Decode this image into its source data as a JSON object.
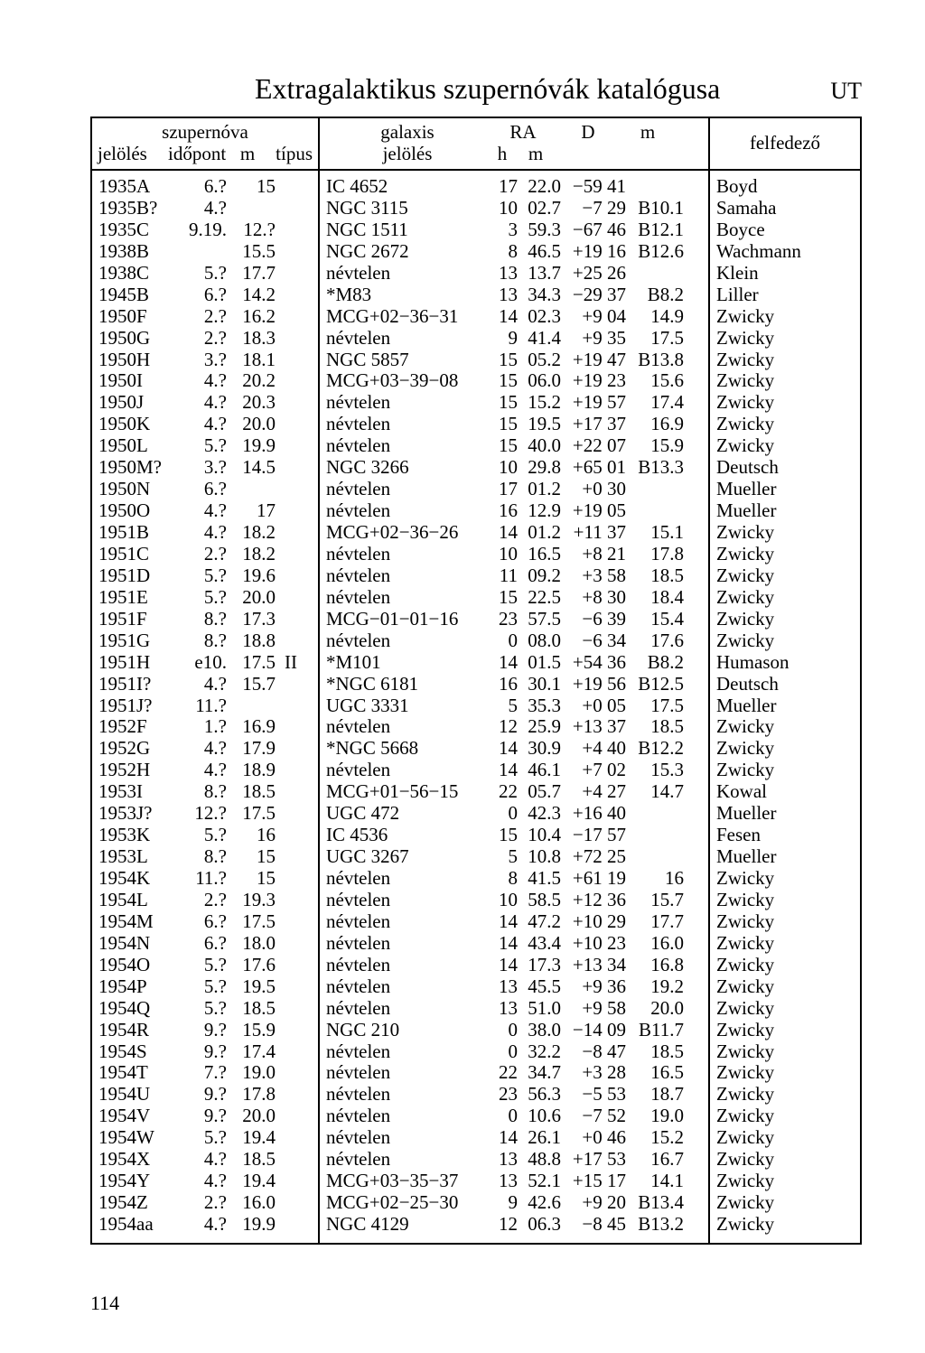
{
  "title": "Extragalaktikus szupernóvák katalógusa",
  "ut_label": "UT",
  "page_number": "114",
  "headers": {
    "sn_super": "szupernóva",
    "sn_jeloles": "jelölés",
    "sn_idopont": "időpont",
    "sn_m": "m",
    "sn_tipus": "típus",
    "gal_galaxis": "galaxis",
    "gal_jeloles": "jelölés",
    "gal_RA": "RA",
    "gal_h": "h",
    "gal_m_ra": "m",
    "gal_D": "D",
    "gal_m": "m",
    "felfedezo": "felfedező"
  },
  "rows": [
    {
      "jel": "1935A",
      "ido": "6.?",
      "m": "15",
      "tip": "",
      "gal": "IC 4652",
      "rah": "17",
      "ram": "22.0",
      "d": "−59 41",
      "gm": "",
      "disc": "Boyd"
    },
    {
      "jel": "1935B?",
      "ido": "4.?",
      "m": "",
      "tip": "",
      "gal": "NGC 3115",
      "rah": "10",
      "ram": "02.7",
      "d": "−7 29",
      "gm": "B10.1",
      "disc": "Samaha"
    },
    {
      "jel": "1935C",
      "ido": "9.19.",
      "m": "12.?",
      "tip": "",
      "gal": "NGC 1511",
      "rah": "3",
      "ram": "59.3",
      "d": "−67 46",
      "gm": "B12.1",
      "disc": "Boyce"
    },
    {
      "jel": "1938B",
      "ido": "",
      "m": "15.5",
      "tip": "",
      "gal": "NGC 2672",
      "rah": "8",
      "ram": "46.5",
      "d": "+19 16",
      "gm": "B12.6",
      "disc": "Wachmann"
    },
    {
      "jel": "1938C",
      "ido": "5.?",
      "m": "17.7",
      "tip": "",
      "gal": "névtelen",
      "rah": "13",
      "ram": "13.7",
      "d": "+25 26",
      "gm": "",
      "disc": "Klein"
    },
    {
      "jel": "1945B",
      "ido": "6.?",
      "m": "14.2",
      "tip": "",
      "gal": "*M83",
      "rah": "13",
      "ram": "34.3",
      "d": "−29 37",
      "gm": "B8.2",
      "disc": "Liller"
    },
    {
      "jel": "1950F",
      "ido": "2.?",
      "m": "16.2",
      "tip": "",
      "gal": "MCG+02−36−31",
      "rah": "14",
      "ram": "02.3",
      "d": "+9 04",
      "gm": "14.9",
      "disc": "Zwicky"
    },
    {
      "jel": "1950G",
      "ido": "2.?",
      "m": "18.3",
      "tip": "",
      "gal": "névtelen",
      "rah": "9",
      "ram": "41.4",
      "d": "+9 35",
      "gm": "17.5",
      "disc": "Zwicky"
    },
    {
      "jel": "1950H",
      "ido": "3.?",
      "m": "18.1",
      "tip": "",
      "gal": "NGC 5857",
      "rah": "15",
      "ram": "05.2",
      "d": "+19 47",
      "gm": "B13.8",
      "disc": "Zwicky"
    },
    {
      "jel": "1950I",
      "ido": "4.?",
      "m": "20.2",
      "tip": "",
      "gal": "MCG+03−39−08",
      "rah": "15",
      "ram": "06.0",
      "d": "+19 23",
      "gm": "15.6",
      "disc": "Zwicky"
    },
    {
      "jel": "1950J",
      "ido": "4.?",
      "m": "20.3",
      "tip": "",
      "gal": "névtelen",
      "rah": "15",
      "ram": "15.2",
      "d": "+19 57",
      "gm": "17.4",
      "disc": "Zwicky"
    },
    {
      "jel": "1950K",
      "ido": "4.?",
      "m": "20.0",
      "tip": "",
      "gal": "névtelen",
      "rah": "15",
      "ram": "19.5",
      "d": "+17 37",
      "gm": "16.9",
      "disc": "Zwicky"
    },
    {
      "jel": "1950L",
      "ido": "5.?",
      "m": "19.9",
      "tip": "",
      "gal": "névtelen",
      "rah": "15",
      "ram": "40.0",
      "d": "+22 07",
      "gm": "15.9",
      "disc": "Zwicky"
    },
    {
      "jel": "1950M?",
      "ido": "3.?",
      "m": "14.5",
      "tip": "",
      "gal": "NGC 3266",
      "rah": "10",
      "ram": "29.8",
      "d": "+65 01",
      "gm": "B13.3",
      "disc": "Deutsch"
    },
    {
      "jel": "1950N",
      "ido": "6.?",
      "m": "",
      "tip": "",
      "gal": "névtelen",
      "rah": "17",
      "ram": "01.2",
      "d": "+0 30",
      "gm": "",
      "disc": "Mueller"
    },
    {
      "jel": "1950O",
      "ido": "4.?",
      "m": "17",
      "tip": "",
      "gal": "névtelen",
      "rah": "16",
      "ram": "12.9",
      "d": "+19 05",
      "gm": "",
      "disc": "Mueller"
    },
    {
      "jel": "1951B",
      "ido": "4.?",
      "m": "18.2",
      "tip": "",
      "gal": "MCG+02−36−26",
      "rah": "14",
      "ram": "01.2",
      "d": "+11 37",
      "gm": "15.1",
      "disc": "Zwicky"
    },
    {
      "jel": "1951C",
      "ido": "2.?",
      "m": "18.2",
      "tip": "",
      "gal": "névtelen",
      "rah": "10",
      "ram": "16.5",
      "d": "+8 21",
      "gm": "17.8",
      "disc": "Zwicky"
    },
    {
      "jel": "1951D",
      "ido": "5.?",
      "m": "19.6",
      "tip": "",
      "gal": "névtelen",
      "rah": "11",
      "ram": "09.2",
      "d": "+3 58",
      "gm": "18.5",
      "disc": "Zwicky"
    },
    {
      "jel": "1951E",
      "ido": "5.?",
      "m": "20.0",
      "tip": "",
      "gal": "névtelen",
      "rah": "15",
      "ram": "22.5",
      "d": "+8 30",
      "gm": "18.4",
      "disc": "Zwicky"
    },
    {
      "jel": "1951F",
      "ido": "8.?",
      "m": "17.3",
      "tip": "",
      "gal": "MCG−01−01−16",
      "rah": "23",
      "ram": "57.5",
      "d": "−6 39",
      "gm": "15.4",
      "disc": "Zwicky"
    },
    {
      "jel": "1951G",
      "ido": "8.?",
      "m": "18.8",
      "tip": "",
      "gal": "névtelen",
      "rah": "0",
      "ram": "08.0",
      "d": "−6 34",
      "gm": "17.6",
      "disc": "Zwicky"
    },
    {
      "jel": "1951H",
      "ido": "e10.",
      "m": "17.5",
      "tip": "II",
      "gal": "*M101",
      "rah": "14",
      "ram": "01.5",
      "d": "+54 36",
      "gm": "B8.2",
      "disc": "Humason"
    },
    {
      "jel": "1951I?",
      "ido": "4.?",
      "m": "15.7",
      "tip": "",
      "gal": "*NGC 6181",
      "rah": "16",
      "ram": "30.1",
      "d": "+19 56",
      "gm": "B12.5",
      "disc": "Deutsch"
    },
    {
      "jel": "1951J?",
      "ido": "11.?",
      "m": "",
      "tip": "",
      "gal": "UGC 3331",
      "rah": "5",
      "ram": "35.3",
      "d": "+0 05",
      "gm": "17.5",
      "disc": "Mueller"
    },
    {
      "jel": "1952F",
      "ido": "1.?",
      "m": "16.9",
      "tip": "",
      "gal": "névtelen",
      "rah": "12",
      "ram": "25.9",
      "d": "+13 37",
      "gm": "18.5",
      "disc": "Zwicky"
    },
    {
      "jel": "1952G",
      "ido": "4.?",
      "m": "17.9",
      "tip": "",
      "gal": "*NGC 5668",
      "rah": "14",
      "ram": "30.9",
      "d": "+4 40",
      "gm": "B12.2",
      "disc": "Zwicky"
    },
    {
      "jel": "1952H",
      "ido": "4.?",
      "m": "18.9",
      "tip": "",
      "gal": "névtelen",
      "rah": "14",
      "ram": "46.1",
      "d": "+7 02",
      "gm": "15.3",
      "disc": "Zwicky"
    },
    {
      "jel": "1953I",
      "ido": "8.?",
      "m": "18.5",
      "tip": "",
      "gal": "MCG+01−56−15",
      "rah": "22",
      "ram": "05.7",
      "d": "+4 27",
      "gm": "14.7",
      "disc": "Kowal"
    },
    {
      "jel": "1953J?",
      "ido": "12.?",
      "m": "17.5",
      "tip": "",
      "gal": "UGC 472",
      "rah": "0",
      "ram": "42.3",
      "d": "+16 40",
      "gm": "",
      "disc": "Mueller"
    },
    {
      "jel": "1953K",
      "ido": "5.?",
      "m": "16",
      "tip": "",
      "gal": "IC 4536",
      "rah": "15",
      "ram": "10.4",
      "d": "−17 57",
      "gm": "",
      "disc": "Fesen"
    },
    {
      "jel": "1953L",
      "ido": "8.?",
      "m": "15",
      "tip": "",
      "gal": "UGC 3267",
      "rah": "5",
      "ram": "10.8",
      "d": "+72 25",
      "gm": "",
      "disc": "Mueller"
    },
    {
      "jel": "1954K",
      "ido": "11.?",
      "m": "15",
      "tip": "",
      "gal": "névtelen",
      "rah": "8",
      "ram": "41.5",
      "d": "+61 19",
      "gm": "16",
      "disc": "Zwicky"
    },
    {
      "jel": "1954L",
      "ido": "2.?",
      "m": "19.3",
      "tip": "",
      "gal": "névtelen",
      "rah": "10",
      "ram": "58.5",
      "d": "+12 36",
      "gm": "15.7",
      "disc": "Zwicky"
    },
    {
      "jel": "1954M",
      "ido": "6.?",
      "m": "17.5",
      "tip": "",
      "gal": "névtelen",
      "rah": "14",
      "ram": "47.2",
      "d": "+10 29",
      "gm": "17.7",
      "disc": "Zwicky"
    },
    {
      "jel": "1954N",
      "ido": "6.?",
      "m": "18.0",
      "tip": "",
      "gal": "névtelen",
      "rah": "14",
      "ram": "43.4",
      "d": "+10 23",
      "gm": "16.0",
      "disc": "Zwicky"
    },
    {
      "jel": "1954O",
      "ido": "5.?",
      "m": "17.6",
      "tip": "",
      "gal": "névtelen",
      "rah": "14",
      "ram": "17.3",
      "d": "+13 34",
      "gm": "16.8",
      "disc": "Zwicky"
    },
    {
      "jel": "1954P",
      "ido": "5.?",
      "m": "19.5",
      "tip": "",
      "gal": "névtelen",
      "rah": "13",
      "ram": "45.5",
      "d": "+9 36",
      "gm": "19.2",
      "disc": "Zwicky"
    },
    {
      "jel": "1954Q",
      "ido": "5.?",
      "m": "18.5",
      "tip": "",
      "gal": "névtelen",
      "rah": "13",
      "ram": "51.0",
      "d": "+9 58",
      "gm": "20.0",
      "disc": "Zwicky"
    },
    {
      "jel": "1954R",
      "ido": "9.?",
      "m": "15.9",
      "tip": "",
      "gal": "NGC 210",
      "rah": "0",
      "ram": "38.0",
      "d": "−14 09",
      "gm": "B11.7",
      "disc": "Zwicky"
    },
    {
      "jel": "1954S",
      "ido": "9.?",
      "m": "17.4",
      "tip": "",
      "gal": "névtelen",
      "rah": "0",
      "ram": "32.2",
      "d": "−8 47",
      "gm": "18.5",
      "disc": "Zwicky"
    },
    {
      "jel": "1954T",
      "ido": "7.?",
      "m": "19.0",
      "tip": "",
      "gal": "névtelen",
      "rah": "22",
      "ram": "34.7",
      "d": "+3 28",
      "gm": "16.5",
      "disc": "Zwicky"
    },
    {
      "jel": "1954U",
      "ido": "9.?",
      "m": "17.8",
      "tip": "",
      "gal": "névtelen",
      "rah": "23",
      "ram": "56.3",
      "d": "−5 53",
      "gm": "18.7",
      "disc": "Zwicky"
    },
    {
      "jel": "1954V",
      "ido": "9.?",
      "m": "20.0",
      "tip": "",
      "gal": "névtelen",
      "rah": "0",
      "ram": "10.6",
      "d": "−7 52",
      "gm": "19.0",
      "disc": "Zwicky"
    },
    {
      "jel": "1954W",
      "ido": "5.?",
      "m": "19.4",
      "tip": "",
      "gal": "névtelen",
      "rah": "14",
      "ram": "26.1",
      "d": "+0 46",
      "gm": "15.2",
      "disc": "Zwicky"
    },
    {
      "jel": "1954X",
      "ido": "4.?",
      "m": "18.5",
      "tip": "",
      "gal": "névtelen",
      "rah": "13",
      "ram": "48.8",
      "d": "+17 53",
      "gm": "16.7",
      "disc": "Zwicky"
    },
    {
      "jel": "1954Y",
      "ido": "4.?",
      "m": "19.4",
      "tip": "",
      "gal": "MCG+03−35−37",
      "rah": "13",
      "ram": "52.1",
      "d": "+15 17",
      "gm": "14.1",
      "disc": "Zwicky"
    },
    {
      "jel": "1954Z",
      "ido": "2.?",
      "m": "16.0",
      "tip": "",
      "gal": "MCG+02−25−30",
      "rah": "9",
      "ram": "42.6",
      "d": "+9 20",
      "gm": "B13.4",
      "disc": "Zwicky"
    },
    {
      "jel": "1954aa",
      "ido": "4.?",
      "m": "19.9",
      "tip": "",
      "gal": "NGC 4129",
      "rah": "12",
      "ram": "06.3",
      "d": "−8 45",
      "gm": "B13.2",
      "disc": "Zwicky"
    }
  ]
}
